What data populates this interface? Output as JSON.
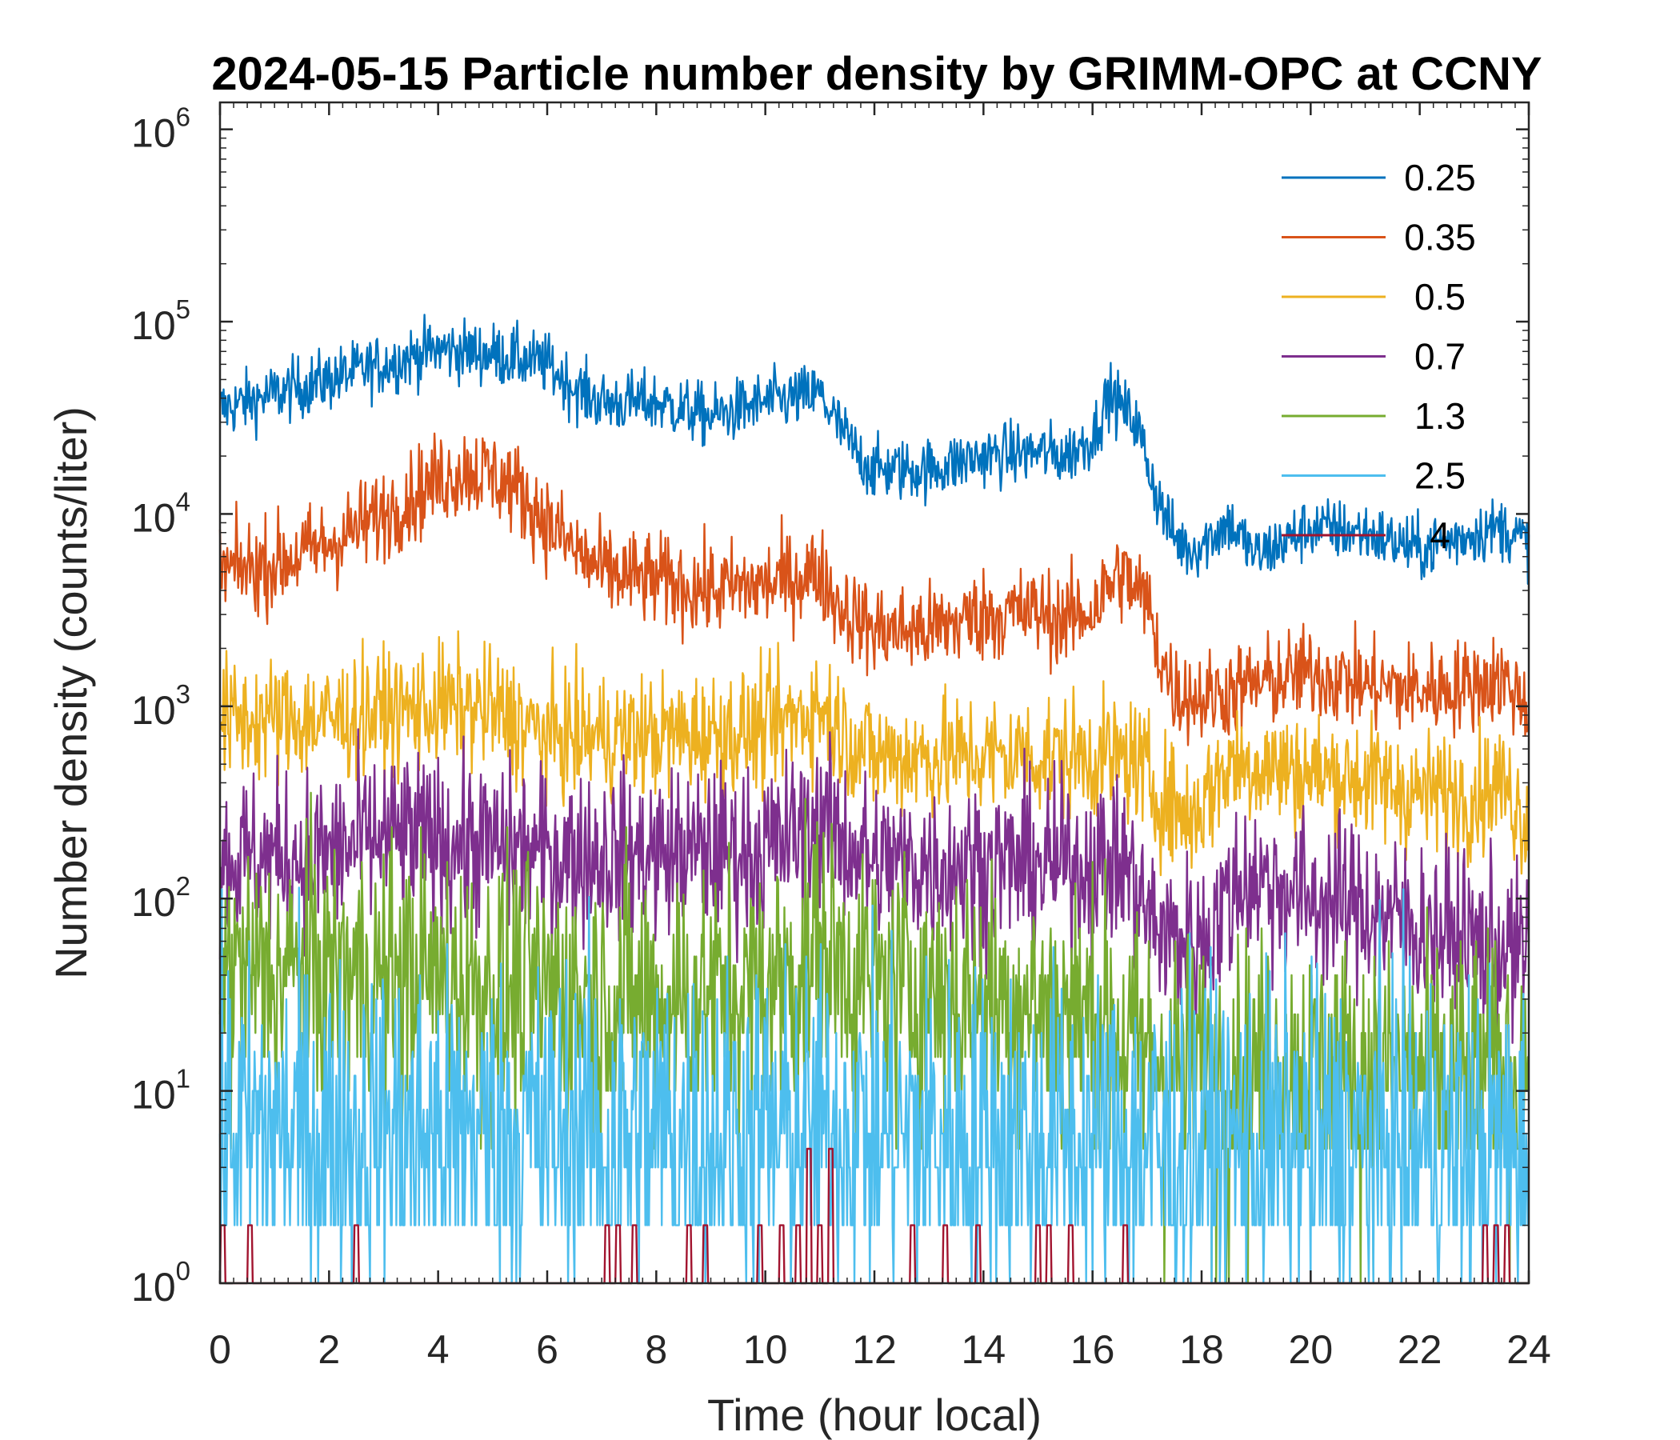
{
  "chart_data": {
    "type": "line",
    "title": "2024-05-15 Particle number density by GRIMM-OPC at CCNY",
    "xlabel": "Time (hour local)",
    "ylabel": "Number density (counts/liter)",
    "xlim": [
      0,
      24
    ],
    "ylim": [
      1,
      2000000
    ],
    "yscale": "log",
    "xticks": [
      "0",
      "2",
      "4",
      "6",
      "8",
      "10",
      "12",
      "14",
      "16",
      "18",
      "20",
      "22",
      "24"
    ],
    "yticks": [
      {
        "base": "10",
        "exp": "0"
      },
      {
        "base": "10",
        "exp": "1"
      },
      {
        "base": "10",
        "exp": "2"
      },
      {
        "base": "10",
        "exp": "3"
      },
      {
        "base": "10",
        "exp": "4"
      },
      {
        "base": "10",
        "exp": "5"
      },
      {
        "base": "10",
        "exp": "6"
      }
    ],
    "grid": false,
    "legend_position": "top-right",
    "series": [
      {
        "name": "0.25",
        "color": "#0072BD",
        "noise": 0.08,
        "x": [
          0,
          1,
          2,
          3,
          4,
          5,
          6,
          6.5,
          7,
          8,
          9,
          10,
          11,
          11.3,
          11.7,
          12,
          13,
          14,
          15,
          15.5,
          16,
          16.3,
          16.8,
          17.2,
          17.5,
          17.8,
          18,
          18.5,
          19,
          20,
          21,
          22,
          23,
          23.5,
          24
        ],
        "y": [
          35000,
          42000,
          50000,
          60000,
          72000,
          68000,
          60000,
          45000,
          38000,
          38000,
          32000,
          38000,
          42000,
          30000,
          20000,
          17000,
          17000,
          20000,
          21000,
          20000,
          25000,
          42000,
          30000,
          12000,
          7500,
          6500,
          7000,
          9000,
          6000,
          8500,
          8000,
          6500,
          8000,
          8500,
          7000
        ]
      },
      {
        "name": "0.35",
        "color": "#D95319",
        "noise": 0.12,
        "x": [
          0,
          1,
          2,
          3,
          4,
          4.5,
          5,
          5.5,
          6,
          6.5,
          7,
          8,
          9,
          10,
          11,
          11.3,
          11.7,
          12,
          13,
          14,
          15,
          15.5,
          16,
          16.5,
          17,
          17.2,
          17.5,
          18,
          19,
          20,
          21,
          22,
          23,
          23.5,
          24
        ],
        "y": [
          5000,
          5500,
          7000,
          10000,
          15000,
          17000,
          16000,
          13000,
          9000,
          6500,
          5000,
          4500,
          4000,
          4300,
          5000,
          3500,
          2800,
          2500,
          2500,
          3000,
          3100,
          2800,
          3200,
          5000,
          3500,
          2000,
          1200,
          1100,
          1300,
          1500,
          1300,
          1200,
          1300,
          1400,
          1000
        ]
      },
      {
        "name": "0.5",
        "color": "#EDB120",
        "noise": 0.16,
        "x": [
          0,
          2,
          4,
          5,
          6,
          8,
          10,
          11,
          11.5,
          12,
          13,
          14,
          15,
          16,
          16.8,
          17.2,
          17.8,
          18.5,
          19,
          20,
          21,
          22,
          23,
          23.5,
          24
        ],
        "y": [
          850,
          850,
          1000,
          950,
          700,
          700,
          750,
          1000,
          700,
          550,
          550,
          550,
          550,
          550,
          520,
          350,
          260,
          500,
          500,
          450,
          420,
          350,
          350,
          400,
          250
        ]
      },
      {
        "name": "0.7",
        "color": "#7E2F8E",
        "noise": 0.22,
        "x": [
          0,
          2,
          3,
          4,
          6,
          8,
          10,
          11,
          12,
          14,
          15,
          16,
          16.6,
          17,
          17.5,
          18,
          18.8,
          19.2,
          20,
          21,
          22,
          23,
          24
        ],
        "y": [
          160,
          170,
          210,
          200,
          170,
          170,
          180,
          250,
          150,
          150,
          150,
          150,
          150,
          80,
          60,
          60,
          130,
          120,
          100,
          90,
          70,
          60,
          50
        ]
      },
      {
        "name": "1.3",
        "color": "#77AC30",
        "noise": 0.35,
        "x": [
          0,
          2,
          4,
          6,
          8,
          10,
          11,
          12,
          14,
          16,
          17,
          18,
          20,
          22,
          24
        ],
        "y": [
          40,
          40,
          38,
          32,
          30,
          32,
          55,
          35,
          30,
          25,
          15,
          13,
          13,
          12,
          12
        ]
      },
      {
        "name": "2.5",
        "color": "#4DBEEE",
        "noise": 0.45,
        "x": [
          0,
          6,
          12,
          18,
          24
        ],
        "y": [
          6,
          6,
          6,
          5,
          5
        ]
      },
      {
        "name": "4",
        "color": "#A2142F",
        "noise": 0,
        "x": [
          0,
          24
        ],
        "y": [
          1,
          1
        ]
      }
    ]
  }
}
